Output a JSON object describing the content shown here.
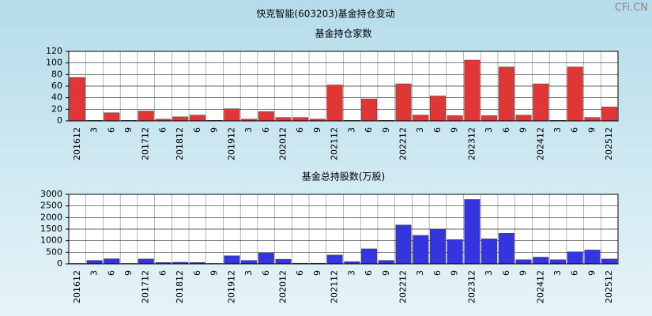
{
  "title": "快克智能(603203)基金持仓变动",
  "watermark": "CFi.CN",
  "chart_data": [
    {
      "type": "bar",
      "title": "基金持仓家数",
      "categories": [
        "201612",
        "3",
        "6",
        "9",
        "201712",
        "6",
        "201812",
        "6",
        "9",
        "201912",
        "3",
        "6",
        "202012",
        "6",
        "9",
        "202112",
        "3",
        "6",
        "9",
        "202212",
        "3",
        "6",
        "9",
        "202312",
        "3",
        "6",
        "9",
        "202412",
        "3",
        "6",
        "9",
        "202512"
      ],
      "values": [
        75,
        1,
        14,
        1,
        17,
        3,
        7,
        10,
        1,
        21,
        3,
        16,
        6,
        6,
        3,
        62,
        1,
        38,
        1,
        64,
        10,
        43,
        9,
        105,
        9,
        93,
        10,
        64,
        1,
        93,
        6,
        24
      ],
      "color": "#e03636",
      "ylim": [
        0,
        120
      ],
      "yticks": [
        0,
        20,
        40,
        60,
        80,
        100,
        120
      ],
      "grid": true
    },
    {
      "type": "bar",
      "title": "基金总持股数(万股)",
      "categories": [
        "201612",
        "3",
        "6",
        "9",
        "201712",
        "6",
        "201812",
        "6",
        "9",
        "201912",
        "3",
        "6",
        "202012",
        "6",
        "9",
        "202112",
        "3",
        "6",
        "9",
        "202212",
        "3",
        "6",
        "9",
        "202312",
        "3",
        "6",
        "9",
        "202412",
        "3",
        "6",
        "9",
        "202512"
      ],
      "values": [
        20,
        150,
        220,
        20,
        210,
        60,
        70,
        60,
        20,
        350,
        150,
        470,
        200,
        30,
        30,
        380,
        100,
        650,
        150,
        1680,
        1230,
        1500,
        1050,
        2780,
        1080,
        1320,
        180,
        290,
        180,
        520,
        600,
        210
      ],
      "color": "#3535e0",
      "ylim": [
        0,
        3000
      ],
      "yticks": [
        0,
        500,
        1000,
        1500,
        2000,
        2500,
        3000
      ],
      "grid": true
    }
  ]
}
